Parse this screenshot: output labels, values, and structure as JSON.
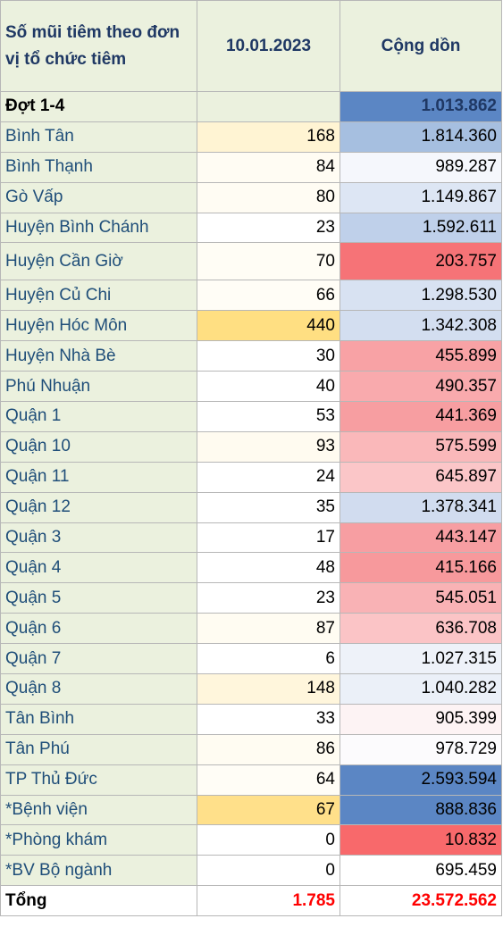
{
  "header": {
    "col1": "Số mũi tiêm theo đơn vị tổ chức tiêm",
    "col2": "10.01.2023",
    "col3": "Cộng dồn"
  },
  "colors": {
    "label_bg": "#ebf1de",
    "label_text": "#1f4e79",
    "total_text": "#ff0000"
  },
  "rows": [
    {
      "name": "Đợt 1-4",
      "daily": "",
      "cumulative": "1.013.862",
      "daily_bg": "#ebf1de",
      "cum_bg": "#5b86c4"
    },
    {
      "name": "Bình Tân",
      "daily": "168",
      "cumulative": "1.814.360",
      "daily_bg": "#fff4d3",
      "cum_bg": "#a6bfe0"
    },
    {
      "name": "Bình Thạnh",
      "daily": "84",
      "cumulative": "989.287",
      "daily_bg": "#fffcf3",
      "cum_bg": "#f5f7fc"
    },
    {
      "name": "Gò Vấp",
      "daily": "80",
      "cumulative": "1.149.867",
      "daily_bg": "#fffcf3",
      "cum_bg": "#dde6f4"
    },
    {
      "name": "Huyện Bình Chánh",
      "daily": "23",
      "cumulative": "1.592.611",
      "daily_bg": "#ffffff",
      "cum_bg": "#bfd0ea"
    },
    {
      "name": "Huyện Cần Giờ",
      "daily": "70",
      "cumulative": "203.757",
      "daily_bg": "#fffdf5",
      "cum_bg": "#f67377"
    },
    {
      "name": "Huyện Củ Chi",
      "daily": "66",
      "cumulative": "1.298.530",
      "daily_bg": "#fffdf6",
      "cum_bg": "#d8e2f2"
    },
    {
      "name": "Huyện Hóc Môn",
      "daily": "440",
      "cumulative": "1.342.308",
      "daily_bg": "#ffdf82",
      "cum_bg": "#d3def0"
    },
    {
      "name": "Huyện Nhà Bè",
      "daily": "30",
      "cumulative": "455.899",
      "daily_bg": "#ffffff",
      "cum_bg": "#f8a2a5"
    },
    {
      "name": "Phú Nhuận",
      "daily": "40",
      "cumulative": "490.357",
      "daily_bg": "#ffffff",
      "cum_bg": "#f9aaad"
    },
    {
      "name": "Quận 1",
      "daily": "53",
      "cumulative": "441.369",
      "daily_bg": "#ffffff",
      "cum_bg": "#f79ea1"
    },
    {
      "name": "Quận 10",
      "daily": "93",
      "cumulative": "575.599",
      "daily_bg": "#fffbf0",
      "cum_bg": "#fab8ba"
    },
    {
      "name": "Quận 11",
      "daily": "24",
      "cumulative": "645.897",
      "daily_bg": "#ffffff",
      "cum_bg": "#fbc6c8"
    },
    {
      "name": "Quận 12",
      "daily": "35",
      "cumulative": "1.378.341",
      "daily_bg": "#ffffff",
      "cum_bg": "#d1dcef"
    },
    {
      "name": "Quận 3",
      "daily": "17",
      "cumulative": "443.147",
      "daily_bg": "#ffffff",
      "cum_bg": "#f79ea2"
    },
    {
      "name": "Quận 4",
      "daily": "48",
      "cumulative": "415.166",
      "daily_bg": "#ffffff",
      "cum_bg": "#f7999c"
    },
    {
      "name": "Quận 5",
      "daily": "23",
      "cumulative": "545.051",
      "daily_bg": "#ffffff",
      "cum_bg": "#f9b2b5"
    },
    {
      "name": "Quận 6",
      "daily": "87",
      "cumulative": "636.708",
      "daily_bg": "#fffcf2",
      "cum_bg": "#fbc4c6"
    },
    {
      "name": "Quận 7",
      "daily": "6",
      "cumulative": "1.027.315",
      "daily_bg": "#ffffff",
      "cum_bg": "#eef2f9"
    },
    {
      "name": "Quận 8",
      "daily": "148",
      "cumulative": "1.040.282",
      "daily_bg": "#fff6dc",
      "cum_bg": "#ebf0f8"
    },
    {
      "name": "Tân Bình",
      "daily": "33",
      "cumulative": "905.399",
      "daily_bg": "#ffffff",
      "cum_bg": "#fdf3f4"
    },
    {
      "name": "Tân Phú",
      "daily": "86",
      "cumulative": "978.729",
      "daily_bg": "#fffcf2",
      "cum_bg": "#fcfbfd"
    },
    {
      "name": "TP Thủ Đức",
      "daily": "64",
      "cumulative": "2.593.594",
      "daily_bg": "#fffdf6",
      "cum_bg": "#5b86c4"
    },
    {
      "name": "*Bệnh viện",
      "daily": "67",
      "cumulative": "888.836",
      "daily_bg": "#ffe08a",
      "cum_bg": "#5b86c4"
    },
    {
      "name": "*Phòng khám",
      "daily": "0",
      "cumulative": "10.832",
      "daily_bg": "#ffffff",
      "cum_bg": "#f8696b"
    },
    {
      "name": "*BV Bộ ngành",
      "daily": "0",
      "cumulative": "695.459",
      "daily_bg": "#ffffff",
      "cum_bg": "#ffffff"
    }
  ],
  "total": {
    "label": "Tổng",
    "daily": "1.785",
    "cumulative": "23.572.562"
  }
}
